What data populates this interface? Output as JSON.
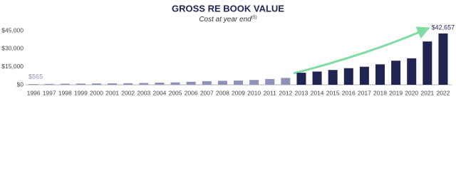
{
  "chart_data": {
    "type": "bar",
    "title": "GROSS RE BOOK VALUE",
    "subtitle": "Cost at year end",
    "subtitle_note": "(5)",
    "categories": [
      "1996",
      "1997",
      "1998",
      "1999",
      "2000",
      "2001",
      "2002",
      "2003",
      "2004",
      "2005",
      "2006",
      "2007",
      "2008",
      "2009",
      "2010",
      "2011",
      "2012",
      "2013",
      "2014",
      "2015",
      "2016",
      "2017",
      "2018",
      "2019",
      "2020",
      "2021",
      "2022"
    ],
    "values": [
      565,
      700,
      900,
      1000,
      1100,
      1200,
      1300,
      1500,
      1800,
      2000,
      2500,
      3000,
      3300,
      3500,
      4000,
      4800,
      5700,
      10000,
      11000,
      12300,
      13800,
      15000,
      17000,
      20000,
      22000,
      36000,
      42657
    ],
    "value_labels": [
      "$565",
      null,
      null,
      null,
      null,
      null,
      null,
      null,
      null,
      null,
      null,
      null,
      null,
      null,
      null,
      null,
      null,
      null,
      null,
      null,
      null,
      null,
      null,
      null,
      null,
      null,
      "$42,657"
    ],
    "colors": [
      "#8c92b9",
      "#8c92b9",
      "#8c92b9",
      "#8c92b9",
      "#8c92b9",
      "#8c92b9",
      "#8c92b9",
      "#8c92b9",
      "#8c92b9",
      "#8c92b9",
      "#8c92b9",
      "#8c92b9",
      "#8c92b9",
      "#8c92b9",
      "#8c92b9",
      "#8c92b9",
      "#8c92b9",
      "#1f2452",
      "#1f2452",
      "#1f2452",
      "#1f2452",
      "#1f2452",
      "#1f2452",
      "#1f2452",
      "#1f2452",
      "#1f2452",
      "#1f2452"
    ],
    "ylim": [
      0,
      45000
    ],
    "yticks": [
      {
        "value": 0,
        "label": "$0"
      },
      {
        "value": 15000,
        "label": "$15,000"
      },
      {
        "value": 30000,
        "label": "$30,000"
      },
      {
        "value": 45000,
        "label": "$45,000"
      }
    ],
    "grid": false
  }
}
